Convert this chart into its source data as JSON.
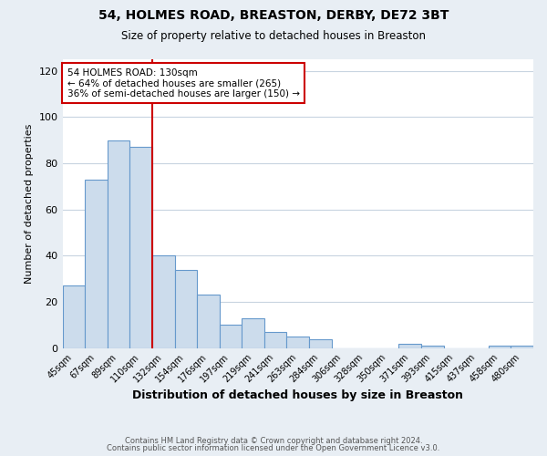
{
  "title": "54, HOLMES ROAD, BREASTON, DERBY, DE72 3BT",
  "subtitle": "Size of property relative to detached houses in Breaston",
  "xlabel": "Distribution of detached houses by size in Breaston",
  "ylabel": "Number of detached properties",
  "bar_labels": [
    "45sqm",
    "67sqm",
    "89sqm",
    "110sqm",
    "132sqm",
    "154sqm",
    "176sqm",
    "197sqm",
    "219sqm",
    "241sqm",
    "263sqm",
    "284sqm",
    "306sqm",
    "328sqm",
    "350sqm",
    "371sqm",
    "393sqm",
    "415sqm",
    "437sqm",
    "458sqm",
    "480sqm"
  ],
  "bar_heights": [
    27,
    73,
    90,
    87,
    40,
    34,
    23,
    10,
    13,
    7,
    5,
    4,
    0,
    0,
    0,
    2,
    1,
    0,
    0,
    1,
    1
  ],
  "bar_color": "#ccdcec",
  "bar_edge_color": "#6699cc",
  "vline_color": "#cc0000",
  "annotation_line1": "54 HOLMES ROAD: 130sqm",
  "annotation_line2": "← 64% of detached houses are smaller (265)",
  "annotation_line3": "36% of semi-detached houses are larger (150) →",
  "annotation_box_color": "#ffffff",
  "annotation_box_edge": "#cc0000",
  "ylim": [
    0,
    125
  ],
  "yticks": [
    0,
    20,
    40,
    60,
    80,
    100,
    120
  ],
  "footer1": "Contains HM Land Registry data © Crown copyright and database right 2024.",
  "footer2": "Contains public sector information licensed under the Open Government Licence v3.0.",
  "bg_color": "#e8eef4",
  "plot_bg_color": "#ffffff",
  "grid_color": "#c8d4e0"
}
